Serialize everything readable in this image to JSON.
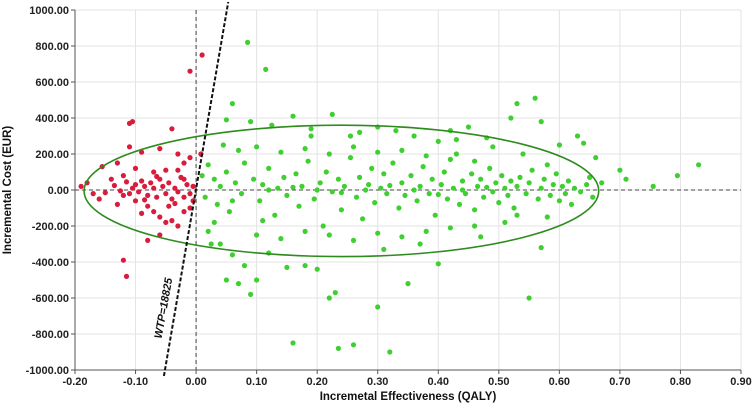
{
  "chart_data": {
    "type": "scatter",
    "title": "",
    "xlabel": "Incremetal Effectiveness (QALY)",
    "ylabel": "Incremental Cost (EUR)",
    "xlim": [
      -0.2,
      0.9
    ],
    "ylim": [
      -1000,
      1000
    ],
    "x_ticks": [
      -0.2,
      -0.1,
      0.0,
      0.1,
      0.2,
      0.3,
      0.4,
      0.5,
      0.6,
      0.7,
      0.8,
      0.9
    ],
    "x_tick_labels": [
      "-0.20",
      "-0.10",
      "0.00",
      "0.10",
      "0.20",
      "0.30",
      "0.40",
      "0.50",
      "0.60",
      "0.70",
      "0.80",
      "0.90"
    ],
    "y_ticks": [
      -1000,
      -800,
      -600,
      -400,
      -200,
      0,
      200,
      400,
      600,
      800,
      1000
    ],
    "y_tick_labels": [
      "-1000.00",
      "-800.00",
      "-600.00",
      "-400.00",
      "-200.00",
      "0.00",
      "200.00",
      "400.00",
      "600.00",
      "800.00",
      "1000.00"
    ],
    "grid": true,
    "wtp_label": "WTP=18825",
    "wtp_line": {
      "slope": 18825,
      "intercept": 0
    },
    "confidence_ellipse": {
      "center": [
        0.24,
        -5
      ],
      "semi_axis_x": 0.425,
      "semi_axis_y": 365
    },
    "colors": {
      "above_wtp": "#d91c3c",
      "below_wtp": "#3fcf30",
      "ellipse": "#2e8b1e",
      "wtp_line": "#111111"
    },
    "series": [
      {
        "color": "#d91c3c",
        "points": [
          [
            -0.11,
            370
          ],
          [
            -0.105,
            380
          ],
          [
            -0.04,
            340
          ],
          [
            -0.01,
            660
          ],
          [
            0.01,
            750
          ],
          [
            0.008,
            200
          ],
          [
            -0.01,
            180
          ],
          [
            -0.02,
            150
          ],
          [
            -0.11,
            240
          ],
          [
            -0.09,
            210
          ],
          [
            -0.06,
            230
          ],
          [
            -0.03,
            200
          ],
          [
            -0.13,
            150
          ],
          [
            -0.155,
            130
          ],
          [
            -0.14,
            60
          ],
          [
            -0.17,
            -20
          ],
          [
            -0.18,
            40
          ],
          [
            -0.19,
            20
          ],
          [
            -0.16,
            -50
          ],
          [
            -0.12,
            -30
          ],
          [
            -0.1,
            -60
          ],
          [
            -0.08,
            -90
          ],
          [
            -0.07,
            -120
          ],
          [
            -0.06,
            -150
          ],
          [
            -0.05,
            -180
          ],
          [
            -0.04,
            -170
          ],
          [
            -0.03,
            -200
          ],
          [
            -0.02,
            -120
          ],
          [
            -0.01,
            -100
          ],
          [
            -0.005,
            -60
          ],
          [
            -0.12,
            -390
          ],
          [
            -0.115,
            -480
          ],
          [
            -0.11,
            -20
          ],
          [
            -0.105,
            10
          ],
          [
            -0.1,
            30
          ],
          [
            -0.095,
            -10
          ],
          [
            -0.09,
            50
          ],
          [
            -0.085,
            20
          ],
          [
            -0.08,
            -30
          ],
          [
            -0.075,
            40
          ],
          [
            -0.07,
            10
          ],
          [
            -0.065,
            -40
          ],
          [
            -0.06,
            60
          ],
          [
            -0.055,
            20
          ],
          [
            -0.05,
            -20
          ],
          [
            -0.045,
            40
          ],
          [
            -0.04,
            -50
          ],
          [
            -0.035,
            10
          ],
          [
            -0.03,
            -10
          ],
          [
            -0.025,
            70
          ],
          [
            -0.02,
            -40
          ],
          [
            -0.015,
            30
          ],
          [
            -0.01,
            -20
          ],
          [
            -0.005,
            20
          ],
          [
            -0.12,
            80
          ],
          [
            -0.13,
            -80
          ],
          [
            -0.09,
            -130
          ],
          [
            -0.07,
            100
          ],
          [
            -0.05,
            110
          ],
          [
            -0.02,
            60
          ],
          [
            -0.06,
            -250
          ],
          [
            -0.08,
            -280
          ],
          [
            -0.045,
            -90
          ],
          [
            -0.03,
            110
          ],
          [
            -0.1,
            120
          ],
          [
            -0.125,
            -5
          ],
          [
            -0.135,
            25
          ],
          [
            -0.15,
            -15
          ],
          [
            -0.115,
            45
          ],
          [
            -0.085,
            -55
          ],
          [
            -0.065,
            75
          ],
          [
            -0.035,
            -75
          ]
        ]
      },
      {
        "color": "#3fcf30",
        "points": [
          [
            0.085,
            820
          ],
          [
            0.115,
            670
          ],
          [
            0.06,
            480
          ],
          [
            0.05,
            390
          ],
          [
            0.09,
            380
          ],
          [
            0.125,
            360
          ],
          [
            0.16,
            410
          ],
          [
            0.19,
            340
          ],
          [
            0.225,
            420
          ],
          [
            0.255,
            300
          ],
          [
            0.3,
            350
          ],
          [
            0.33,
            330
          ],
          [
            0.36,
            300
          ],
          [
            0.4,
            270
          ],
          [
            0.42,
            330
          ],
          [
            0.45,
            350
          ],
          [
            0.48,
            290
          ],
          [
            0.52,
            400
          ],
          [
            0.53,
            480
          ],
          [
            0.54,
            200
          ],
          [
            0.56,
            510
          ],
          [
            0.57,
            380
          ],
          [
            0.6,
            250
          ],
          [
            0.63,
            300
          ],
          [
            0.64,
            260
          ],
          [
            0.66,
            180
          ],
          [
            0.7,
            110
          ],
          [
            0.71,
            60
          ],
          [
            0.755,
            20
          ],
          [
            0.795,
            80
          ],
          [
            0.83,
            140
          ],
          [
            0.67,
            40
          ],
          [
            0.02,
            -230
          ],
          [
            0.03,
            -180
          ],
          [
            0.04,
            -300
          ],
          [
            0.06,
            -360
          ],
          [
            0.08,
            -420
          ],
          [
            0.05,
            -500
          ],
          [
            0.07,
            -520
          ],
          [
            0.09,
            -580
          ],
          [
            0.1,
            -500
          ],
          [
            0.12,
            -350
          ],
          [
            0.15,
            -430
          ],
          [
            0.18,
            -420
          ],
          [
            0.2,
            -440
          ],
          [
            0.22,
            -600
          ],
          [
            0.23,
            -570
          ],
          [
            0.16,
            -850
          ],
          [
            0.235,
            -880
          ],
          [
            0.26,
            -860
          ],
          [
            0.32,
            -900
          ],
          [
            0.3,
            -650
          ],
          [
            0.35,
            -520
          ],
          [
            0.4,
            -410
          ],
          [
            0.47,
            -260
          ],
          [
            0.51,
            -180
          ],
          [
            0.55,
            -600
          ],
          [
            0.57,
            -320
          ],
          [
            0.58,
            -150
          ],
          [
            0.6,
            -60
          ],
          [
            0.62,
            -80
          ],
          [
            0.01,
            80
          ],
          [
            0.015,
            -40
          ],
          [
            0.02,
            140
          ],
          [
            0.03,
            60
          ],
          [
            0.035,
            -80
          ],
          [
            0.04,
            20
          ],
          [
            0.05,
            100
          ],
          [
            0.055,
            -120
          ],
          [
            0.065,
            40
          ],
          [
            0.075,
            -20
          ],
          [
            0.08,
            150
          ],
          [
            0.095,
            60
          ],
          [
            0.105,
            -60
          ],
          [
            0.11,
            30
          ],
          [
            0.12,
            120
          ],
          [
            0.13,
            -140
          ],
          [
            0.135,
            10
          ],
          [
            0.145,
            70
          ],
          [
            0.15,
            -30
          ],
          [
            0.165,
            90
          ],
          [
            0.17,
            -90
          ],
          [
            0.175,
            20
          ],
          [
            0.185,
            160
          ],
          [
            0.195,
            -50
          ],
          [
            0.205,
            40
          ],
          [
            0.21,
            -200
          ],
          [
            0.215,
            100
          ],
          [
            0.225,
            -10
          ],
          [
            0.235,
            60
          ],
          [
            0.24,
            -110
          ],
          [
            0.245,
            20
          ],
          [
            0.255,
            180
          ],
          [
            0.265,
            -40
          ],
          [
            0.27,
            70
          ],
          [
            0.275,
            -160
          ],
          [
            0.285,
            30
          ],
          [
            0.29,
            120
          ],
          [
            0.295,
            -70
          ],
          [
            0.305,
            10
          ],
          [
            0.31,
            90
          ],
          [
            0.315,
            -20
          ],
          [
            0.325,
            150
          ],
          [
            0.335,
            -100
          ],
          [
            0.34,
            40
          ],
          [
            0.345,
            -30
          ],
          [
            0.355,
            80
          ],
          [
            0.365,
            -60
          ],
          [
            0.37,
            20
          ],
          [
            0.375,
            130
          ],
          [
            0.385,
            -20
          ],
          [
            0.39,
            60
          ],
          [
            0.395,
            -140
          ],
          [
            0.405,
            30
          ],
          [
            0.41,
            100
          ],
          [
            0.415,
            -50
          ],
          [
            0.425,
            10
          ],
          [
            0.43,
            200
          ],
          [
            0.435,
            -80
          ],
          [
            0.44,
            50
          ],
          [
            0.445,
            -20
          ],
          [
            0.455,
            90
          ],
          [
            0.46,
            -110
          ],
          [
            0.465,
            20
          ],
          [
            0.47,
            60
          ],
          [
            0.475,
            -40
          ],
          [
            0.485,
            120
          ],
          [
            0.49,
            -10
          ],
          [
            0.495,
            40
          ],
          [
            0.5,
            -70
          ],
          [
            0.505,
            80
          ],
          [
            0.51,
            10
          ],
          [
            0.515,
            -30
          ],
          [
            0.52,
            50
          ],
          [
            0.525,
            -100
          ],
          [
            0.53,
            20
          ],
          [
            0.535,
            70
          ],
          [
            0.545,
            -20
          ],
          [
            0.55,
            40
          ],
          [
            0.555,
            110
          ],
          [
            0.565,
            -50
          ],
          [
            0.57,
            10
          ],
          [
            0.575,
            60
          ],
          [
            0.585,
            -30
          ],
          [
            0.59,
            30
          ],
          [
            0.595,
            90
          ],
          [
            0.605,
            20
          ],
          [
            0.61,
            -20
          ],
          [
            0.615,
            50
          ],
          [
            0.625,
            10
          ],
          [
            0.635,
            -10
          ],
          [
            0.645,
            30
          ],
          [
            0.65,
            70
          ],
          [
            0.655,
            -40
          ],
          [
            0.025,
            -300
          ],
          [
            0.045,
            250
          ],
          [
            0.07,
            220
          ],
          [
            0.1,
            240
          ],
          [
            0.14,
            210
          ],
          [
            0.18,
            230
          ],
          [
            0.22,
            200
          ],
          [
            0.26,
            240
          ],
          [
            0.3,
            210
          ],
          [
            0.34,
            220
          ],
          [
            0.38,
            190
          ],
          [
            0.42,
            170
          ],
          [
            0.46,
            160
          ],
          [
            0.1,
            -250
          ],
          [
            0.14,
            -270
          ],
          [
            0.18,
            -230
          ],
          [
            0.22,
            -250
          ],
          [
            0.26,
            -280
          ],
          [
            0.3,
            -240
          ],
          [
            0.34,
            -260
          ],
          [
            0.38,
            -230
          ],
          [
            0.42,
            -210
          ],
          [
            0.46,
            -200
          ],
          [
            0.12,
            0
          ],
          [
            0.2,
            0
          ],
          [
            0.28,
            0
          ],
          [
            0.36,
            0
          ],
          [
            0.44,
            0
          ],
          [
            0.16,
            15
          ],
          [
            0.24,
            -15
          ],
          [
            0.32,
            25
          ],
          [
            0.4,
            -25
          ],
          [
            0.48,
            15
          ],
          [
            0.06,
            -60
          ],
          [
            0.11,
            -170
          ],
          [
            0.19,
            300
          ],
          [
            0.27,
            320
          ],
          [
            0.31,
            -330
          ],
          [
            0.37,
            -300
          ],
          [
            0.43,
            280
          ],
          [
            0.49,
            240
          ],
          [
            0.53,
            -140
          ],
          [
            0.58,
            140
          ]
        ]
      }
    ]
  }
}
